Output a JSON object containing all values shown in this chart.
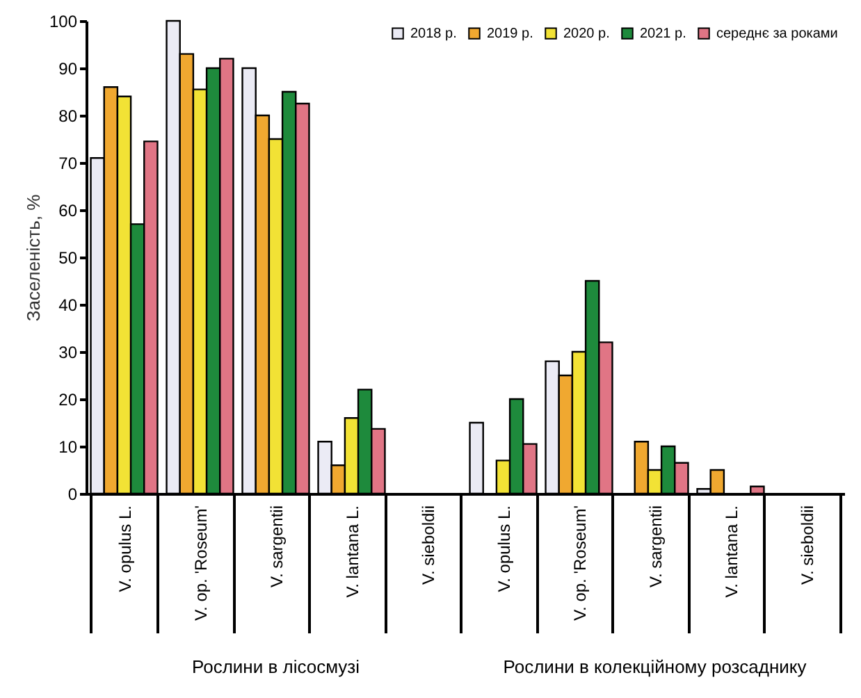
{
  "chart_data": {
    "type": "bar",
    "ylabel": "Заселеність, %",
    "categories": [
      "V. opulus L.",
      "V. op. 'Roseum'",
      "V. sargentii",
      "V. lantana L.",
      "V. sieboldii",
      "V. opulus L.",
      "V. op. 'Roseum'",
      "V. sargentii",
      "V. lantana L.",
      "V. sieboldii"
    ],
    "series": [
      {
        "name": "2018 р.",
        "color": "#ebebf5",
        "values": [
          71,
          100,
          90,
          11,
          0,
          15,
          28,
          0,
          1,
          0
        ]
      },
      {
        "name": "2019 р.",
        "color": "#f0a830",
        "values": [
          86,
          93,
          80,
          6,
          0,
          0,
          25,
          11,
          5,
          0
        ]
      },
      {
        "name": "2020 р.",
        "color": "#f2e235",
        "values": [
          84,
          85.5,
          75,
          16,
          0,
          7,
          30,
          5,
          0,
          0
        ]
      },
      {
        "name": "2021 р.",
        "color": "#1e8a3c",
        "values": [
          57,
          90,
          85,
          22,
          0,
          20,
          45,
          10,
          0,
          0
        ]
      },
      {
        "name": "середнє за роками",
        "color": "#e07585",
        "values": [
          74.5,
          92,
          82.5,
          13.7,
          0,
          10.5,
          32,
          6.5,
          1.5,
          0
        ]
      }
    ],
    "ylim": [
      0,
      100
    ],
    "yticks": [
      0,
      10,
      20,
      30,
      40,
      50,
      60,
      70,
      80,
      90,
      100
    ],
    "grid": false,
    "legend": "top right",
    "annotations": [
      "Рослини в  лісосмузі",
      "Рослини в колекційному розсаднику"
    ]
  }
}
